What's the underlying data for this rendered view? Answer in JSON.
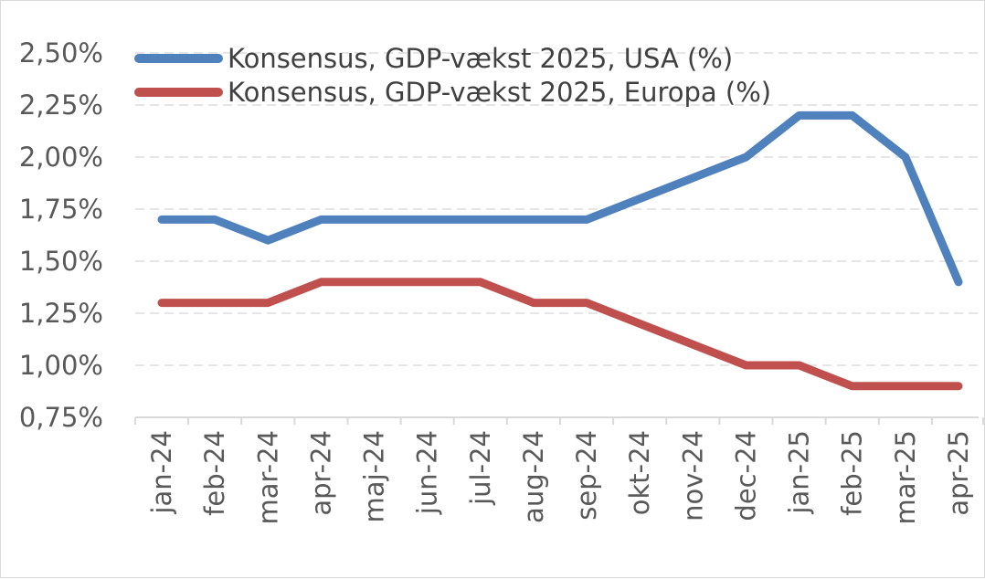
{
  "chart_data": {
    "type": "line",
    "categories": [
      "jan-24",
      "feb-24",
      "mar-24",
      "apr-24",
      "maj-24",
      "jun-24",
      "jul-24",
      "aug-24",
      "sep-24",
      "okt-24",
      "nov-24",
      "dec-24",
      "jan-25",
      "feb-25",
      "mar-25",
      "apr-25"
    ],
    "series": [
      {
        "name": "Konsensus, GDP-vækst 2025, USA (%)",
        "color": "#4f81bd",
        "values": [
          1.7,
          1.7,
          1.6,
          1.7,
          1.7,
          1.7,
          1.7,
          1.7,
          1.7,
          1.8,
          1.9,
          2.0,
          2.2,
          2.2,
          2.0,
          1.4
        ]
      },
      {
        "name": "Konsensus, GDP-vækst 2025, Europa (%)",
        "color": "#c0504d",
        "values": [
          1.3,
          1.3,
          1.3,
          1.4,
          1.4,
          1.4,
          1.4,
          1.3,
          1.3,
          1.2,
          1.1,
          1.0,
          1.0,
          0.9,
          0.9,
          0.9
        ]
      }
    ],
    "ylim": [
      0.75,
      2.5
    ],
    "yticks": [
      0.75,
      1.0,
      1.25,
      1.5,
      1.75,
      2.0,
      2.25,
      2.5
    ],
    "ytick_labels": [
      "0,75%",
      "1,00%",
      "1,25%",
      "1,50%",
      "1,75%",
      "2,00%",
      "2,25%",
      "2,50%"
    ],
    "grid": true,
    "legend_position": "top-left"
  }
}
